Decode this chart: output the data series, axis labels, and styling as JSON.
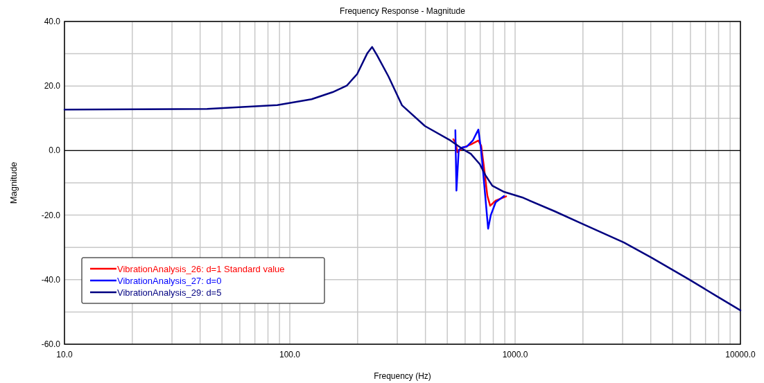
{
  "chart_data": {
    "type": "line",
    "title": "Frequency Response - Magnitude",
    "xlabel": "Frequency (Hz)",
    "ylabel": "Magnitude",
    "log": "x",
    "grid": true,
    "legend": "bottom left",
    "line_style": "solid",
    "marker": "none",
    "xlim": [
      10,
      10000
    ],
    "ylim": [
      -60,
      40
    ],
    "xticks": [
      {
        "value": 10,
        "label": "10.0"
      },
      {
        "value": 20,
        "label": null
      },
      {
        "value": 30,
        "label": null
      },
      {
        "value": 40,
        "label": null
      },
      {
        "value": 50,
        "label": null
      },
      {
        "value": 60,
        "label": null
      },
      {
        "value": 70,
        "label": null
      },
      {
        "value": 80,
        "label": null
      },
      {
        "value": 90,
        "label": null
      },
      {
        "value": 100,
        "label": "100.0"
      },
      {
        "value": 200,
        "label": null
      },
      {
        "value": 300,
        "label": null
      },
      {
        "value": 400,
        "label": null
      },
      {
        "value": 500,
        "label": null
      },
      {
        "value": 600,
        "label": null
      },
      {
        "value": 700,
        "label": null
      },
      {
        "value": 800,
        "label": null
      },
      {
        "value": 900,
        "label": null
      },
      {
        "value": 1000,
        "label": "1000.0"
      },
      {
        "value": 2000,
        "label": null
      },
      {
        "value": 3000,
        "label": null
      },
      {
        "value": 4000,
        "label": null
      },
      {
        "value": 5000,
        "label": null
      },
      {
        "value": 6000,
        "label": null
      },
      {
        "value": 7000,
        "label": null
      },
      {
        "value": 8000,
        "label": null
      },
      {
        "value": 9000,
        "label": null
      },
      {
        "value": 10000,
        "label": "10000.0"
      }
    ],
    "yticks": [
      {
        "value": -60,
        "label": "-60.0"
      },
      {
        "value": -50,
        "label": null
      },
      {
        "value": -40,
        "label": "-40.0"
      },
      {
        "value": -30,
        "label": null
      },
      {
        "value": -20,
        "label": "-20.0"
      },
      {
        "value": -10,
        "label": null
      },
      {
        "value": 0,
        "label": "0.0"
      },
      {
        "value": 10,
        "label": null
      },
      {
        "value": 20,
        "label": "20.0"
      },
      {
        "value": 30,
        "label": null
      },
      {
        "value": 40,
        "label": "40.0"
      }
    ],
    "ref_lines": [
      {
        "axis": "y",
        "value": 0,
        "color": "#000000"
      }
    ],
    "series": [
      {
        "name": "VibrationAnalysis_26: d=1 Standard value",
        "color": "#ff0000",
        "x": [
          532,
          544,
          555,
          584,
          640,
          687,
          707,
          727,
          753,
          775,
          820,
          912
        ],
        "values": [
          3.5,
          2.5,
          -0.5,
          0.8,
          2.0,
          3.1,
          1.5,
          -5,
          -14,
          -17.1,
          -15.5,
          -14.2
        ]
      },
      {
        "name": "VibrationAnalysis_27: d=0",
        "color": "#0000ff",
        "x": [
          543,
          549,
          562,
          584,
          609,
          649,
          672,
          687,
          707,
          737,
          759,
          780,
          820,
          893
        ],
        "values": [
          6.3,
          -12.4,
          0.2,
          1.0,
          1.2,
          3.1,
          5.2,
          6.5,
          0,
          -14.1,
          -24.2,
          -20,
          -16,
          -14.1
        ]
      },
      {
        "name": "VibrationAnalysis_29: d=5",
        "color": "#000080",
        "x": [
          10,
          43,
          88,
          125,
          155,
          179,
          199,
          221,
          232,
          244,
          274,
          315,
          398,
          517,
          584,
          636,
          697,
          738,
          792,
          893,
          1074,
          1497,
          1986,
          3040,
          4036,
          5874,
          7800,
          10000
        ],
        "values": [
          12.7,
          12.9,
          14.1,
          15.9,
          18.1,
          20.1,
          23.7,
          30.2,
          32.1,
          29.5,
          23.0,
          14.0,
          7.6,
          3.1,
          0.5,
          -1.0,
          -4.2,
          -7.6,
          -10.9,
          -12.8,
          -14.5,
          -18.8,
          -22.7,
          -28.5,
          -33.2,
          -39.8,
          -45.0,
          -49.5
        ]
      }
    ]
  }
}
